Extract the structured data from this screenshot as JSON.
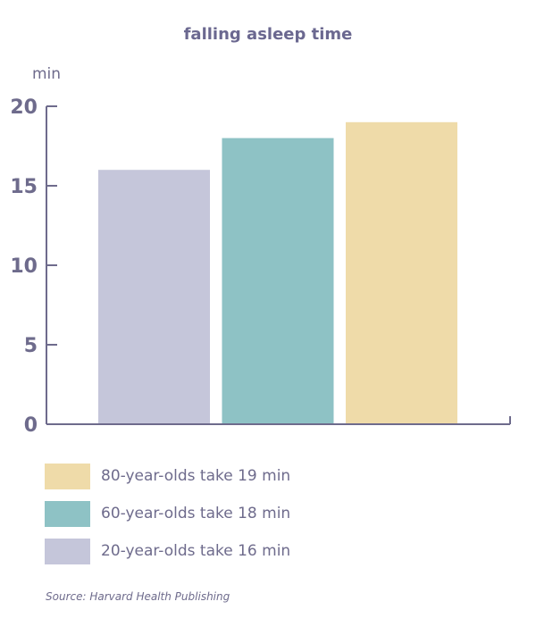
{
  "colors": {
    "axis": "#6e6b8c",
    "text": "#6e6b8c",
    "bar_20": "#c5c6da",
    "bar_60": "#8ec2c5",
    "bar_80": "#efdba9"
  },
  "chart_data": {
    "type": "bar",
    "title": "falling asleep time",
    "ylabel": "min",
    "xlabel": "",
    "ylim": [
      0,
      20
    ],
    "yticks": [
      0,
      5,
      10,
      15,
      20
    ],
    "categories": [
      "20-year-olds",
      "60-year-olds",
      "80-year-olds"
    ],
    "values": [
      16,
      18,
      19
    ],
    "bar_colors": [
      "#c5c6da",
      "#8ec2c5",
      "#efdba9"
    ],
    "grid": false,
    "legend_placement": "bottom-left"
  },
  "legend": [
    {
      "label": "80-year-olds take 19 min",
      "color": "#efdba9"
    },
    {
      "label": "60-year-olds take 18 min",
      "color": "#8ec2c5"
    },
    {
      "label": "20-year-olds take 16 min",
      "color": "#c5c6da"
    }
  ],
  "source": "Source: Harvard Health Publishing"
}
